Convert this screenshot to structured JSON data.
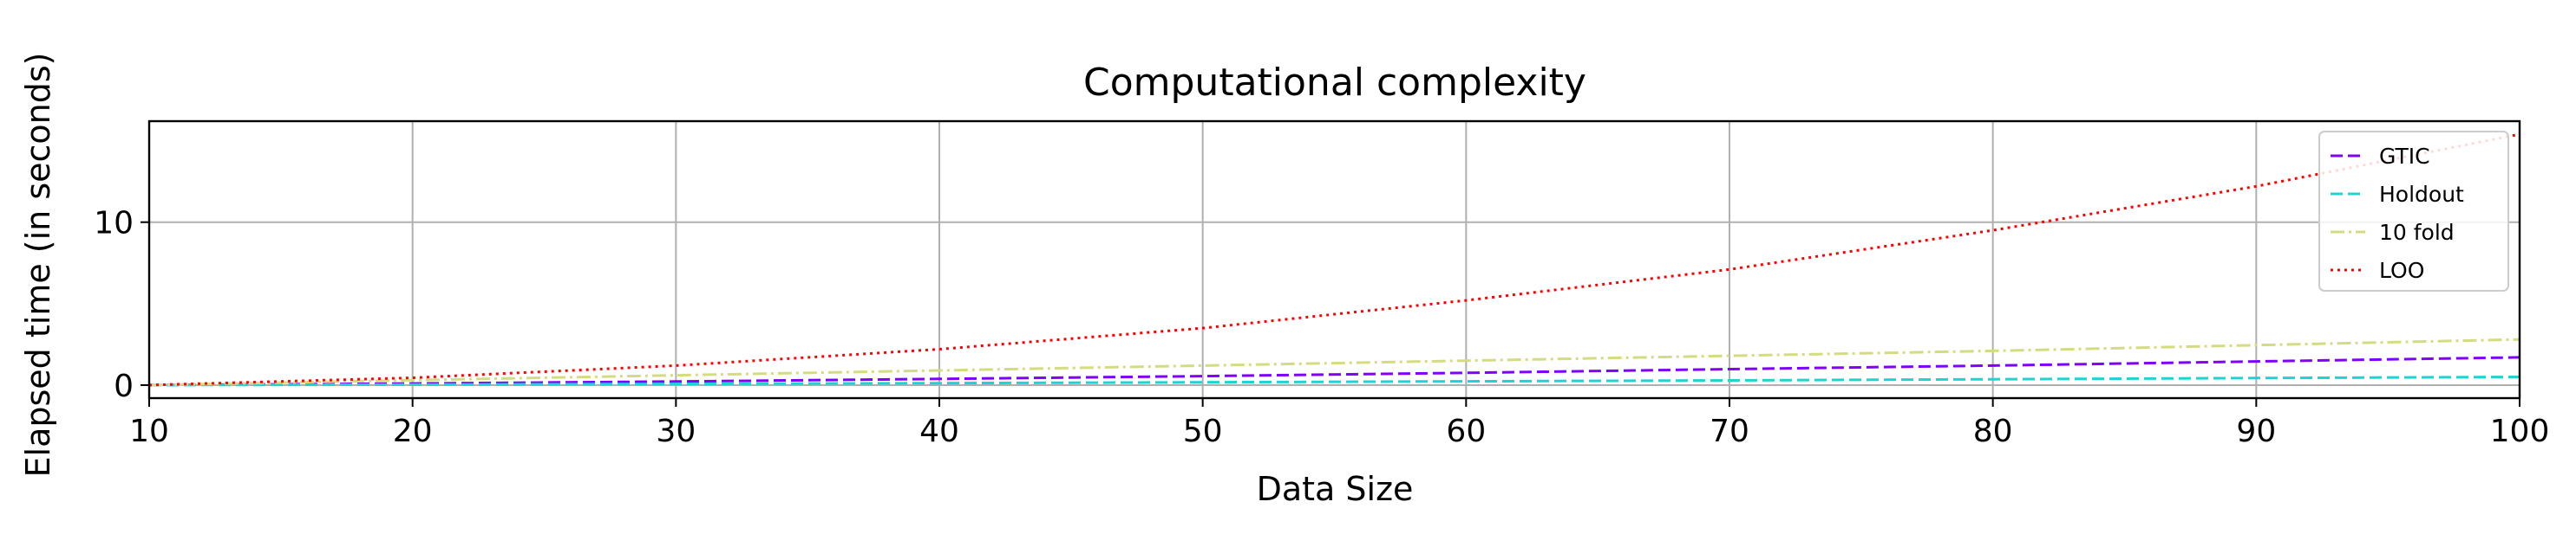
{
  "chart_data": {
    "type": "line",
    "title": "Computational complexity",
    "xlabel": "Data Size",
    "ylabel": "Elapsed time (in seconds)",
    "xlim": [
      10,
      100
    ],
    "ylim": [
      -0.8,
      16.2
    ],
    "xticks": [
      10,
      20,
      30,
      40,
      50,
      60,
      70,
      80,
      90,
      100
    ],
    "yticks": [
      0,
      10
    ],
    "grid": true,
    "legend_position": "top-right",
    "x": [
      10,
      20,
      30,
      40,
      50,
      60,
      70,
      80,
      90,
      100
    ],
    "series": [
      {
        "name": "GTIC",
        "color": "#7f00ff",
        "style": "dashed",
        "values": [
          0.0,
          0.1,
          0.22,
          0.38,
          0.55,
          0.75,
          0.98,
          1.2,
          1.45,
          1.7
        ]
      },
      {
        "name": "Holdout",
        "color": "#1fd3d3",
        "style": "dashed",
        "values": [
          0.0,
          0.03,
          0.07,
          0.12,
          0.17,
          0.23,
          0.29,
          0.36,
          0.43,
          0.5
        ]
      },
      {
        "name": "10 fold",
        "color": "#d4dc7f",
        "style": "dashdot",
        "values": [
          0.0,
          0.3,
          0.6,
          0.9,
          1.2,
          1.5,
          1.8,
          2.1,
          2.45,
          2.8
        ]
      },
      {
        "name": "LOO",
        "color": "#ff0000",
        "style": "dotted",
        "values": [
          0.0,
          0.45,
          1.2,
          2.2,
          3.5,
          5.2,
          7.1,
          9.5,
          12.2,
          15.4
        ]
      }
    ]
  }
}
